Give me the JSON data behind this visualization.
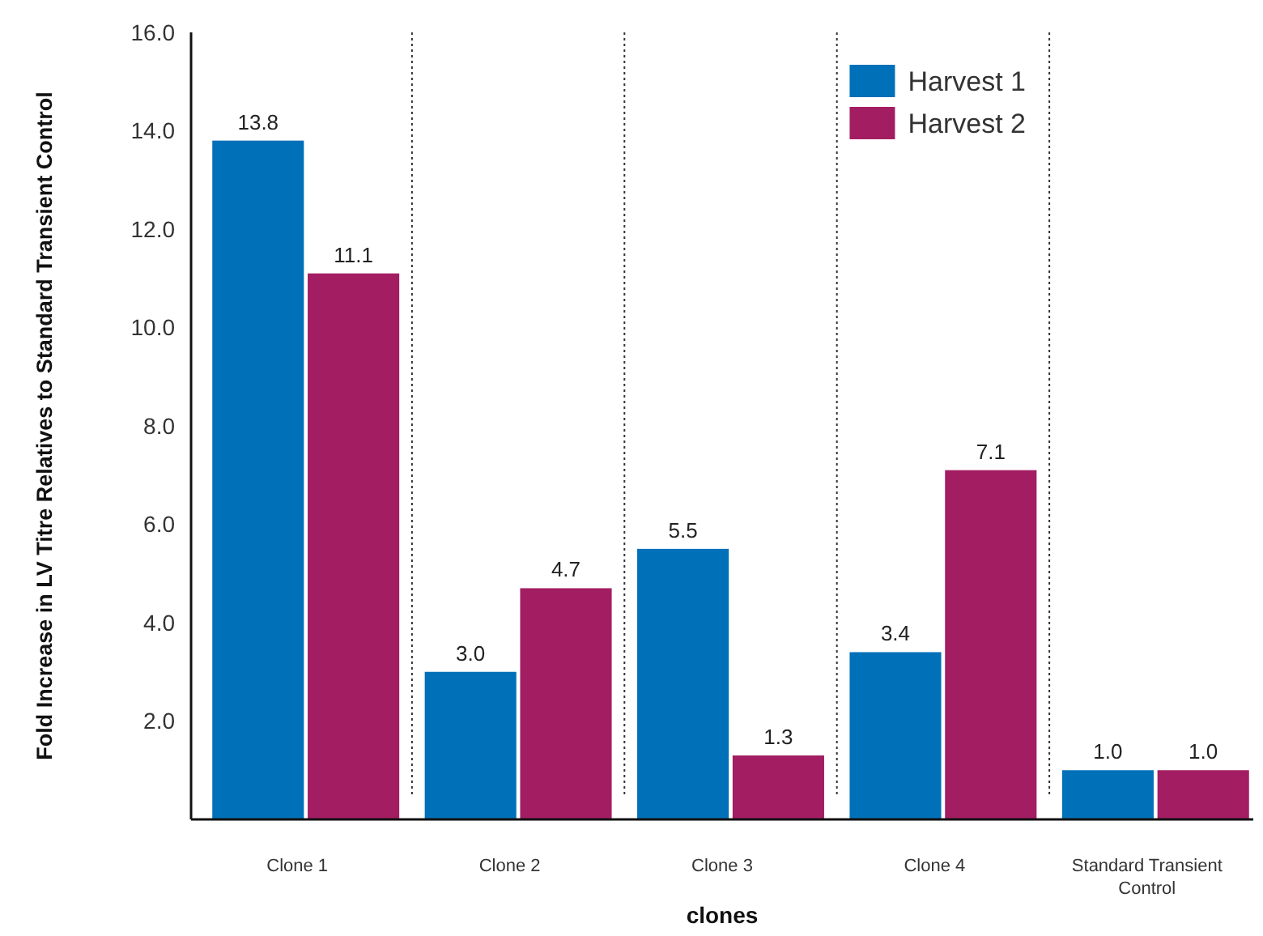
{
  "chart_data": {
    "type": "bar",
    "xlabel": "clones",
    "ylabel": "Fold Increase in LV Titre Relatives to Standard Transient Control",
    "categories": [
      "Clone 1",
      "Clone 2",
      "Clone 3",
      "Clone 4",
      "Standard Transient Control"
    ],
    "series": [
      {
        "name": "Harvest 1",
        "color": "#0070b8",
        "values": [
          13.8,
          3.0,
          5.5,
          3.4,
          1.0
        ],
        "value_labels": [
          "13.8",
          "3.0",
          "5.5",
          "3.4",
          "1.0"
        ]
      },
      {
        "name": "Harvest 2",
        "color": "#a31d62",
        "values": [
          11.1,
          4.7,
          1.3,
          7.1,
          1.0
        ],
        "value_labels": [
          "11.1",
          "4.7",
          "1.3",
          "7.1",
          "1.0"
        ]
      }
    ],
    "ylim": [
      0,
      16
    ],
    "yticks": [
      {
        "value": 2,
        "label": "2.0"
      },
      {
        "value": 4,
        "label": "4.0"
      },
      {
        "value": 6,
        "label": "6.0"
      },
      {
        "value": 8,
        "label": "8.0"
      },
      {
        "value": 10,
        "label": "10.0"
      },
      {
        "value": 12,
        "label": "12.0"
      },
      {
        "value": 14,
        "label": "14.0"
      },
      {
        "value": 16,
        "label": "16.0"
      }
    ],
    "grid": false,
    "legend": "top right"
  }
}
